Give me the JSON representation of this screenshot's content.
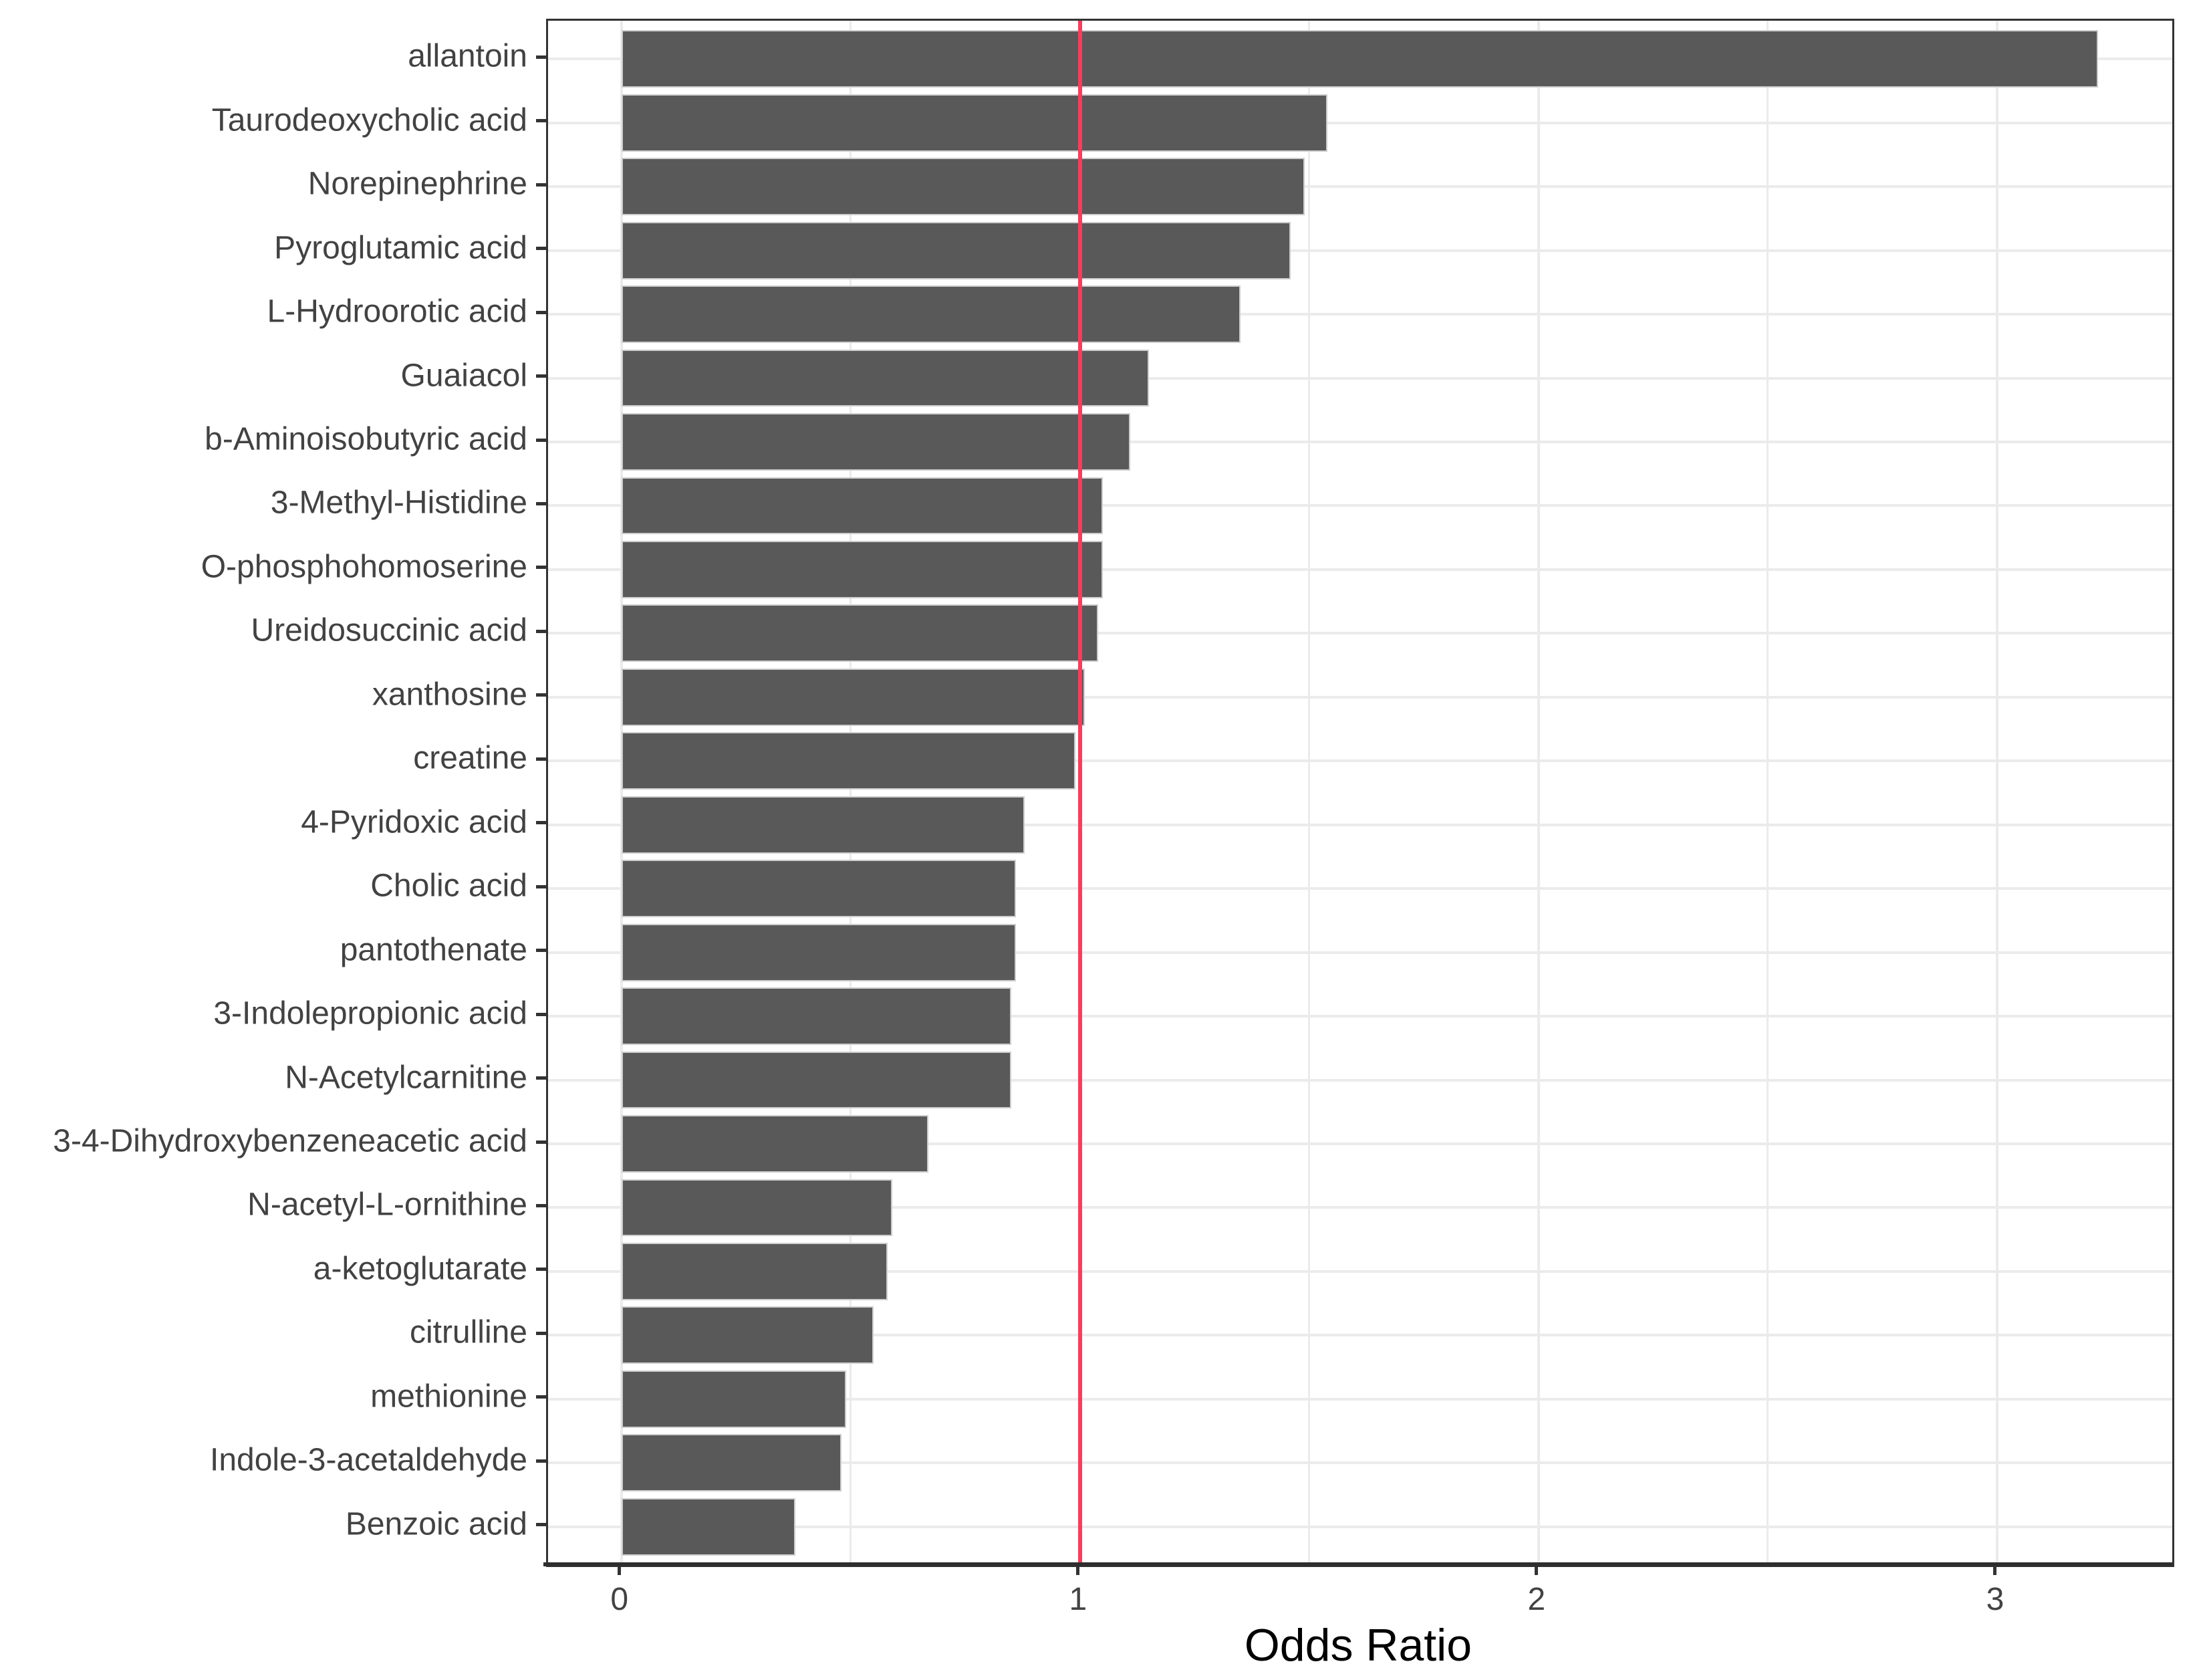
{
  "chart_data": {
    "type": "bar",
    "orientation": "horizontal",
    "title": "",
    "xlabel": "Odds Ratio",
    "ylabel": "",
    "x_tick_labels": [
      "0",
      "1",
      "2",
      "3"
    ],
    "x_tick_values": [
      0,
      1,
      2,
      3
    ],
    "x_minor_gridlines": [
      0.5,
      1.5,
      2.5
    ],
    "xlim_rendered": [
      -0.16,
      3.382
    ],
    "reference_line_x": 1,
    "bar_width_fraction": 0.9,
    "grid": "on",
    "legend": "none",
    "categories": [
      "allantoin",
      "Taurodeoxycholic acid",
      "Norepinephrine",
      "Pyroglutamic acid",
      "L-Hydroorotic acid",
      "Guaiacol",
      "b-Aminoisobutyric acid",
      "3-Methyl-Histidine",
      "O-phosphohomoserine",
      "Ureidosuccinic acid",
      "xanthosine",
      "creatine",
      "4-Pyridoxic acid",
      "Cholic acid",
      "pantothenate",
      "3-Indolepropionic acid",
      "N-Acetylcarnitine",
      "3-4-Dihydroxybenzeneacetic acid",
      "N-acetyl-L-ornithine",
      "a-ketoglutarate",
      "citrulline",
      "methionine",
      "Indole-3-acetaldehyde",
      "Benzoic acid"
    ],
    "values": [
      3.22,
      1.54,
      1.49,
      1.46,
      1.35,
      1.15,
      1.11,
      1.05,
      1.05,
      1.04,
      1.01,
      0.99,
      0.88,
      0.86,
      0.86,
      0.85,
      0.85,
      0.67,
      0.59,
      0.58,
      0.55,
      0.49,
      0.48,
      0.38
    ]
  },
  "colors": {
    "bar_fill": "#595959",
    "bar_border": "#cdcdcd",
    "reference_line": "#FA3C5C",
    "grid_major": "#EBEBEB",
    "grid_minor": "#EBEBEB",
    "panel_border": "#333333",
    "axis_line": "#2e2e2e",
    "tick_color": "#333333",
    "axis_text": "#424242",
    "axis_title": "#000000",
    "background": "#FFFFFF"
  }
}
